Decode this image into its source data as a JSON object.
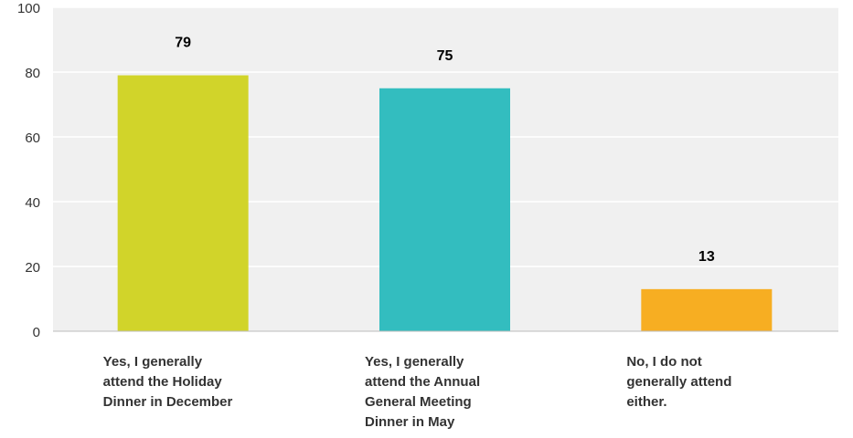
{
  "chart_data": {
    "type": "bar",
    "categories": [
      "Yes, I generally attend the Holiday Dinner in December",
      "Yes, I generally attend the Annual General Meeting Dinner in May",
      "No, I do not generally attend either."
    ],
    "category_lines": [
      [
        "Yes, I generally",
        "attend the Holiday",
        "Dinner in December"
      ],
      [
        "Yes, I generally",
        "attend the Annual",
        "General Meeting",
        "Dinner in May"
      ],
      [
        "No, I do not",
        "generally attend",
        "either."
      ]
    ],
    "values": [
      79,
      75,
      13
    ],
    "colors": [
      "#d1d42a",
      "#33bdbf",
      "#f7ae22"
    ],
    "ylim": [
      0,
      100
    ],
    "yticks": [
      0,
      20,
      40,
      60,
      80,
      100
    ],
    "grid": true,
    "title": "",
    "xlabel": "",
    "ylabel": ""
  }
}
